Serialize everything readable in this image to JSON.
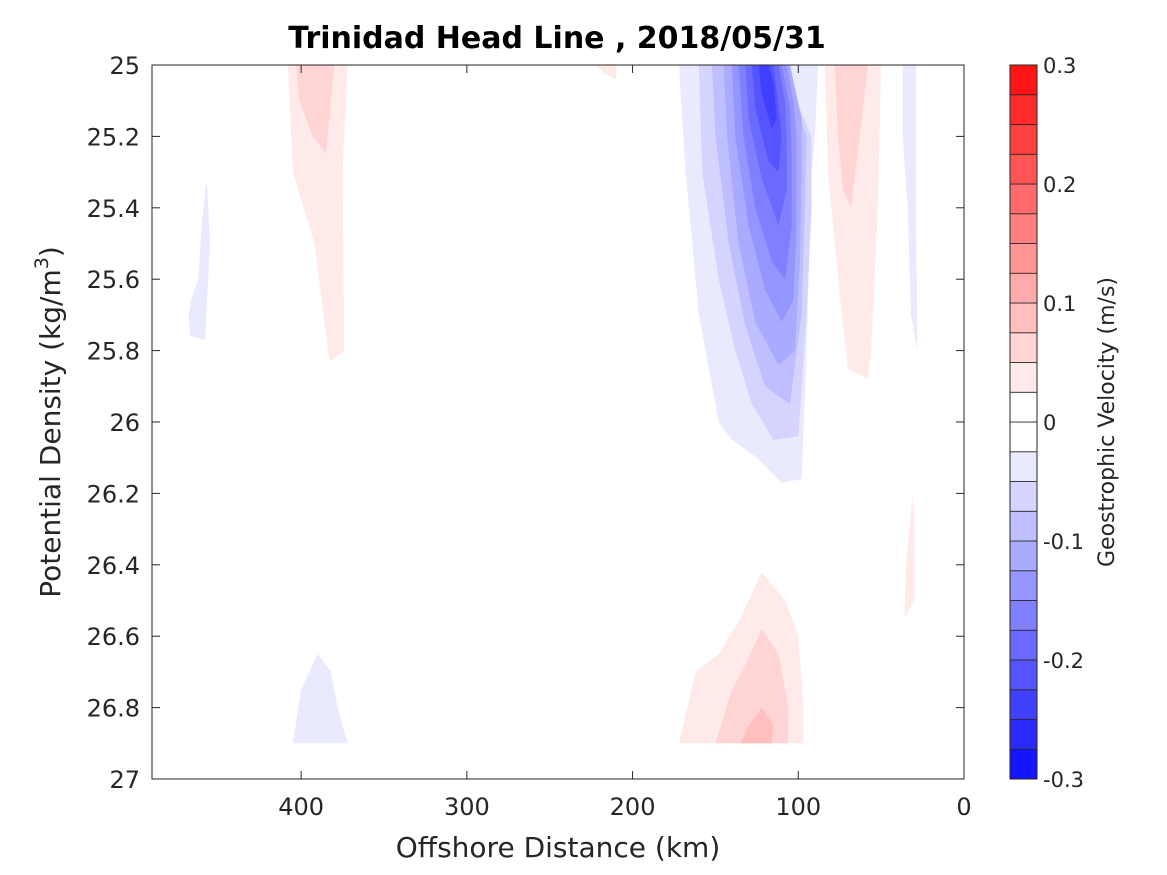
{
  "chart_data": {
    "type": "contourf",
    "title": "Trinidad Head Line , 2018/05/31",
    "xlabel": "Offshore Distance (km)",
    "ylabel_main": "Potential Density (kg/m",
    "ylabel_sup": "3",
    "ylabel_close": ")",
    "xlim": [
      490,
      0
    ],
    "ylim": [
      25,
      27
    ],
    "x_reversed": true,
    "y_reversed": true,
    "xticks": [
      400,
      300,
      200,
      100,
      0
    ],
    "xtick_labels": [
      "400",
      "300",
      "200",
      "100",
      "0"
    ],
    "yticks": [
      25,
      25.2,
      25.4,
      25.6,
      25.8,
      26,
      26.2,
      26.4,
      26.6,
      26.8,
      27
    ],
    "ytick_labels": [
      "25",
      "25.2",
      "25.4",
      "25.6",
      "25.8",
      "26",
      "26.2",
      "26.4",
      "26.6",
      "26.8",
      "27"
    ],
    "grid": false,
    "colorbar": {
      "label": "Geostrophic Velocity (m/s)",
      "range": [
        -0.3,
        0.3
      ],
      "step": 0.025,
      "ticks": [
        0.3,
        0.2,
        0.1,
        0,
        -0.1,
        -0.2,
        -0.3
      ],
      "tick_labels": [
        "0.3",
        "0.2",
        "0.1",
        "0",
        "-0.1",
        "-0.2",
        "-0.3"
      ]
    },
    "regions": [
      {
        "name": "offshore-positive-column",
        "level": 0.025,
        "polygon": [
          [
            408,
            25
          ],
          [
            372,
            25
          ],
          [
            375,
            25.3
          ],
          [
            374,
            25.8
          ],
          [
            383,
            25.83
          ],
          [
            392,
            25.5
          ],
          [
            405,
            25.3
          ]
        ]
      },
      {
        "name": "offshore-positive-core",
        "level": 0.05,
        "polygon": [
          [
            403,
            25
          ],
          [
            380,
            25
          ],
          [
            385,
            25.25
          ],
          [
            393,
            25.2
          ],
          [
            401,
            25.1
          ]
        ]
      },
      {
        "name": "offshore-negative-patch",
        "level": -0.025,
        "polygon": [
          [
            468,
            25.7
          ],
          [
            466,
            25.65
          ],
          [
            462,
            25.6
          ],
          [
            460,
            25.45
          ],
          [
            457,
            25.32
          ],
          [
            455,
            25.5
          ],
          [
            458,
            25.77
          ],
          [
            467,
            25.76
          ]
        ]
      },
      {
        "name": "deep-negative-patch",
        "level": -0.025,
        "polygon": [
          [
            405,
            26.9
          ],
          [
            372,
            26.9
          ],
          [
            378,
            26.8
          ],
          [
            382,
            26.7
          ],
          [
            390,
            26.65
          ],
          [
            400,
            26.75
          ]
        ]
      },
      {
        "name": "small-positive-patch",
        "level": 0.025,
        "polygon": [
          [
            222,
            25
          ],
          [
            210,
            25
          ],
          [
            210,
            25.04
          ],
          [
            218,
            25.02
          ]
        ]
      },
      {
        "name": "jet-l1",
        "level": -0.025,
        "polygon": [
          [
            172,
            25
          ],
          [
            168,
            25.3
          ],
          [
            160,
            25.7
          ],
          [
            152,
            25.9
          ],
          [
            148,
            26
          ],
          [
            140,
            26.05
          ],
          [
            125,
            26.1
          ],
          [
            110,
            26.17
          ],
          [
            98,
            26.16
          ],
          [
            95,
            25.8
          ],
          [
            92,
            25.3
          ],
          [
            90,
            25.2
          ],
          [
            88,
            25
          ],
          [
            118,
            25
          ],
          [
            150,
            25
          ]
        ]
      },
      {
        "name": "jet-l2",
        "level": -0.05,
        "polygon": [
          [
            160,
            25
          ],
          [
            158,
            25.3
          ],
          [
            148,
            25.6
          ],
          [
            138,
            25.8
          ],
          [
            128,
            25.95
          ],
          [
            115,
            26.05
          ],
          [
            100,
            26.04
          ],
          [
            95,
            25.7
          ],
          [
            92,
            25.4
          ],
          [
            92,
            25.2
          ],
          [
            110,
            25
          ],
          [
            140,
            25
          ]
        ]
      },
      {
        "name": "jet-l3",
        "level": -0.075,
        "polygon": [
          [
            152,
            25
          ],
          [
            150,
            25.2
          ],
          [
            142,
            25.5
          ],
          [
            132,
            25.73
          ],
          [
            120,
            25.9
          ],
          [
            105,
            25.95
          ],
          [
            98,
            25.7
          ],
          [
            96,
            25.4
          ],
          [
            95,
            25.2
          ],
          [
            110,
            25
          ],
          [
            135,
            25
          ]
        ]
      },
      {
        "name": "jet-l4",
        "level": -0.1,
        "polygon": [
          [
            145,
            25
          ],
          [
            143,
            25.2
          ],
          [
            136,
            25.5
          ],
          [
            126,
            25.72
          ],
          [
            112,
            25.84
          ],
          [
            102,
            25.8
          ],
          [
            99,
            25.55
          ],
          [
            98,
            25.3
          ],
          [
            98,
            25.15
          ],
          [
            105,
            25
          ],
          [
            128,
            25
          ]
        ]
      },
      {
        "name": "jet-l5",
        "level": -0.125,
        "polygon": [
          [
            140,
            25
          ],
          [
            138,
            25.2
          ],
          [
            130,
            25.45
          ],
          [
            120,
            25.63
          ],
          [
            110,
            25.72
          ],
          [
            103,
            25.66
          ],
          [
            101,
            25.45
          ],
          [
            101,
            25.2
          ],
          [
            103,
            25.1
          ],
          [
            107,
            25
          ],
          [
            125,
            25
          ]
        ]
      },
      {
        "name": "jet-l6",
        "level": -0.15,
        "polygon": [
          [
            136,
            25
          ],
          [
            133,
            25.2
          ],
          [
            126,
            25.4
          ],
          [
            116,
            25.55
          ],
          [
            108,
            25.6
          ],
          [
            104,
            25.45
          ],
          [
            104,
            25.25
          ],
          [
            105,
            25.12
          ],
          [
            110,
            25
          ],
          [
            122,
            25
          ]
        ]
      },
      {
        "name": "jet-l7",
        "level": -0.175,
        "polygon": [
          [
            132,
            25
          ],
          [
            130,
            25.15
          ],
          [
            122,
            25.32
          ],
          [
            112,
            25.45
          ],
          [
            107,
            25.35
          ],
          [
            107,
            25.2
          ],
          [
            108,
            25.1
          ],
          [
            112,
            25
          ],
          [
            120,
            25
          ]
        ]
      },
      {
        "name": "jet-l8",
        "level": -0.2,
        "polygon": [
          [
            128,
            25
          ],
          [
            126,
            25.12
          ],
          [
            118,
            25.27
          ],
          [
            112,
            25.3
          ],
          [
            110,
            25.2
          ],
          [
            112,
            25.12
          ],
          [
            115,
            25
          ],
          [
            120,
            25
          ]
        ]
      },
      {
        "name": "jet-l9",
        "level": -0.225,
        "polygon": [
          [
            124,
            25
          ],
          [
            122,
            25.08
          ],
          [
            116,
            25.18
          ],
          [
            113,
            25.15
          ],
          [
            115,
            25.05
          ],
          [
            118,
            25
          ]
        ]
      },
      {
        "name": "inshore-positive-column",
        "level": 0.025,
        "polygon": [
          [
            84,
            25
          ],
          [
            50,
            25
          ],
          [
            52,
            25.4
          ],
          [
            56,
            25.8
          ],
          [
            58,
            25.88
          ],
          [
            70,
            25.85
          ],
          [
            76,
            25.6
          ],
          [
            82,
            25.3
          ]
        ]
      },
      {
        "name": "inshore-positive-core",
        "level": 0.05,
        "polygon": [
          [
            78,
            25
          ],
          [
            58,
            25
          ],
          [
            63,
            25.2
          ],
          [
            68,
            25.4
          ],
          [
            73,
            25.35
          ],
          [
            76,
            25.2
          ]
        ]
      },
      {
        "name": "coastal-negative-strip",
        "level": -0.025,
        "polygon": [
          [
            37,
            25
          ],
          [
            29,
            25
          ],
          [
            29,
            25.4
          ],
          [
            28,
            25.8
          ],
          [
            32,
            25.7
          ],
          [
            34,
            25.4
          ],
          [
            37,
            25.2
          ]
        ]
      },
      {
        "name": "coastal-positive-strip",
        "level": 0.025,
        "polygon": [
          [
            31,
            26.2
          ],
          [
            35,
            26.4
          ],
          [
            36,
            26.55
          ],
          [
            30,
            26.5
          ],
          [
            30,
            26.3
          ]
        ]
      },
      {
        "name": "deep-positive-l1",
        "level": 0.025,
        "polygon": [
          [
            172,
            26.9
          ],
          [
            162,
            26.7
          ],
          [
            148,
            26.65
          ],
          [
            135,
            26.55
          ],
          [
            122,
            26.42
          ],
          [
            108,
            26.5
          ],
          [
            100,
            26.6
          ],
          [
            97,
            26.8
          ],
          [
            97,
            26.9
          ]
        ]
      },
      {
        "name": "deep-positive-l2",
        "level": 0.05,
        "polygon": [
          [
            150,
            26.9
          ],
          [
            140,
            26.75
          ],
          [
            132,
            26.68
          ],
          [
            122,
            26.58
          ],
          [
            112,
            26.65
          ],
          [
            106,
            26.8
          ],
          [
            106,
            26.9
          ]
        ]
      },
      {
        "name": "deep-positive-l3",
        "level": 0.075,
        "polygon": [
          [
            135,
            26.9
          ],
          [
            130,
            26.85
          ],
          [
            122,
            26.8
          ],
          [
            115,
            26.85
          ],
          [
            116,
            26.9
          ]
        ]
      }
    ]
  }
}
